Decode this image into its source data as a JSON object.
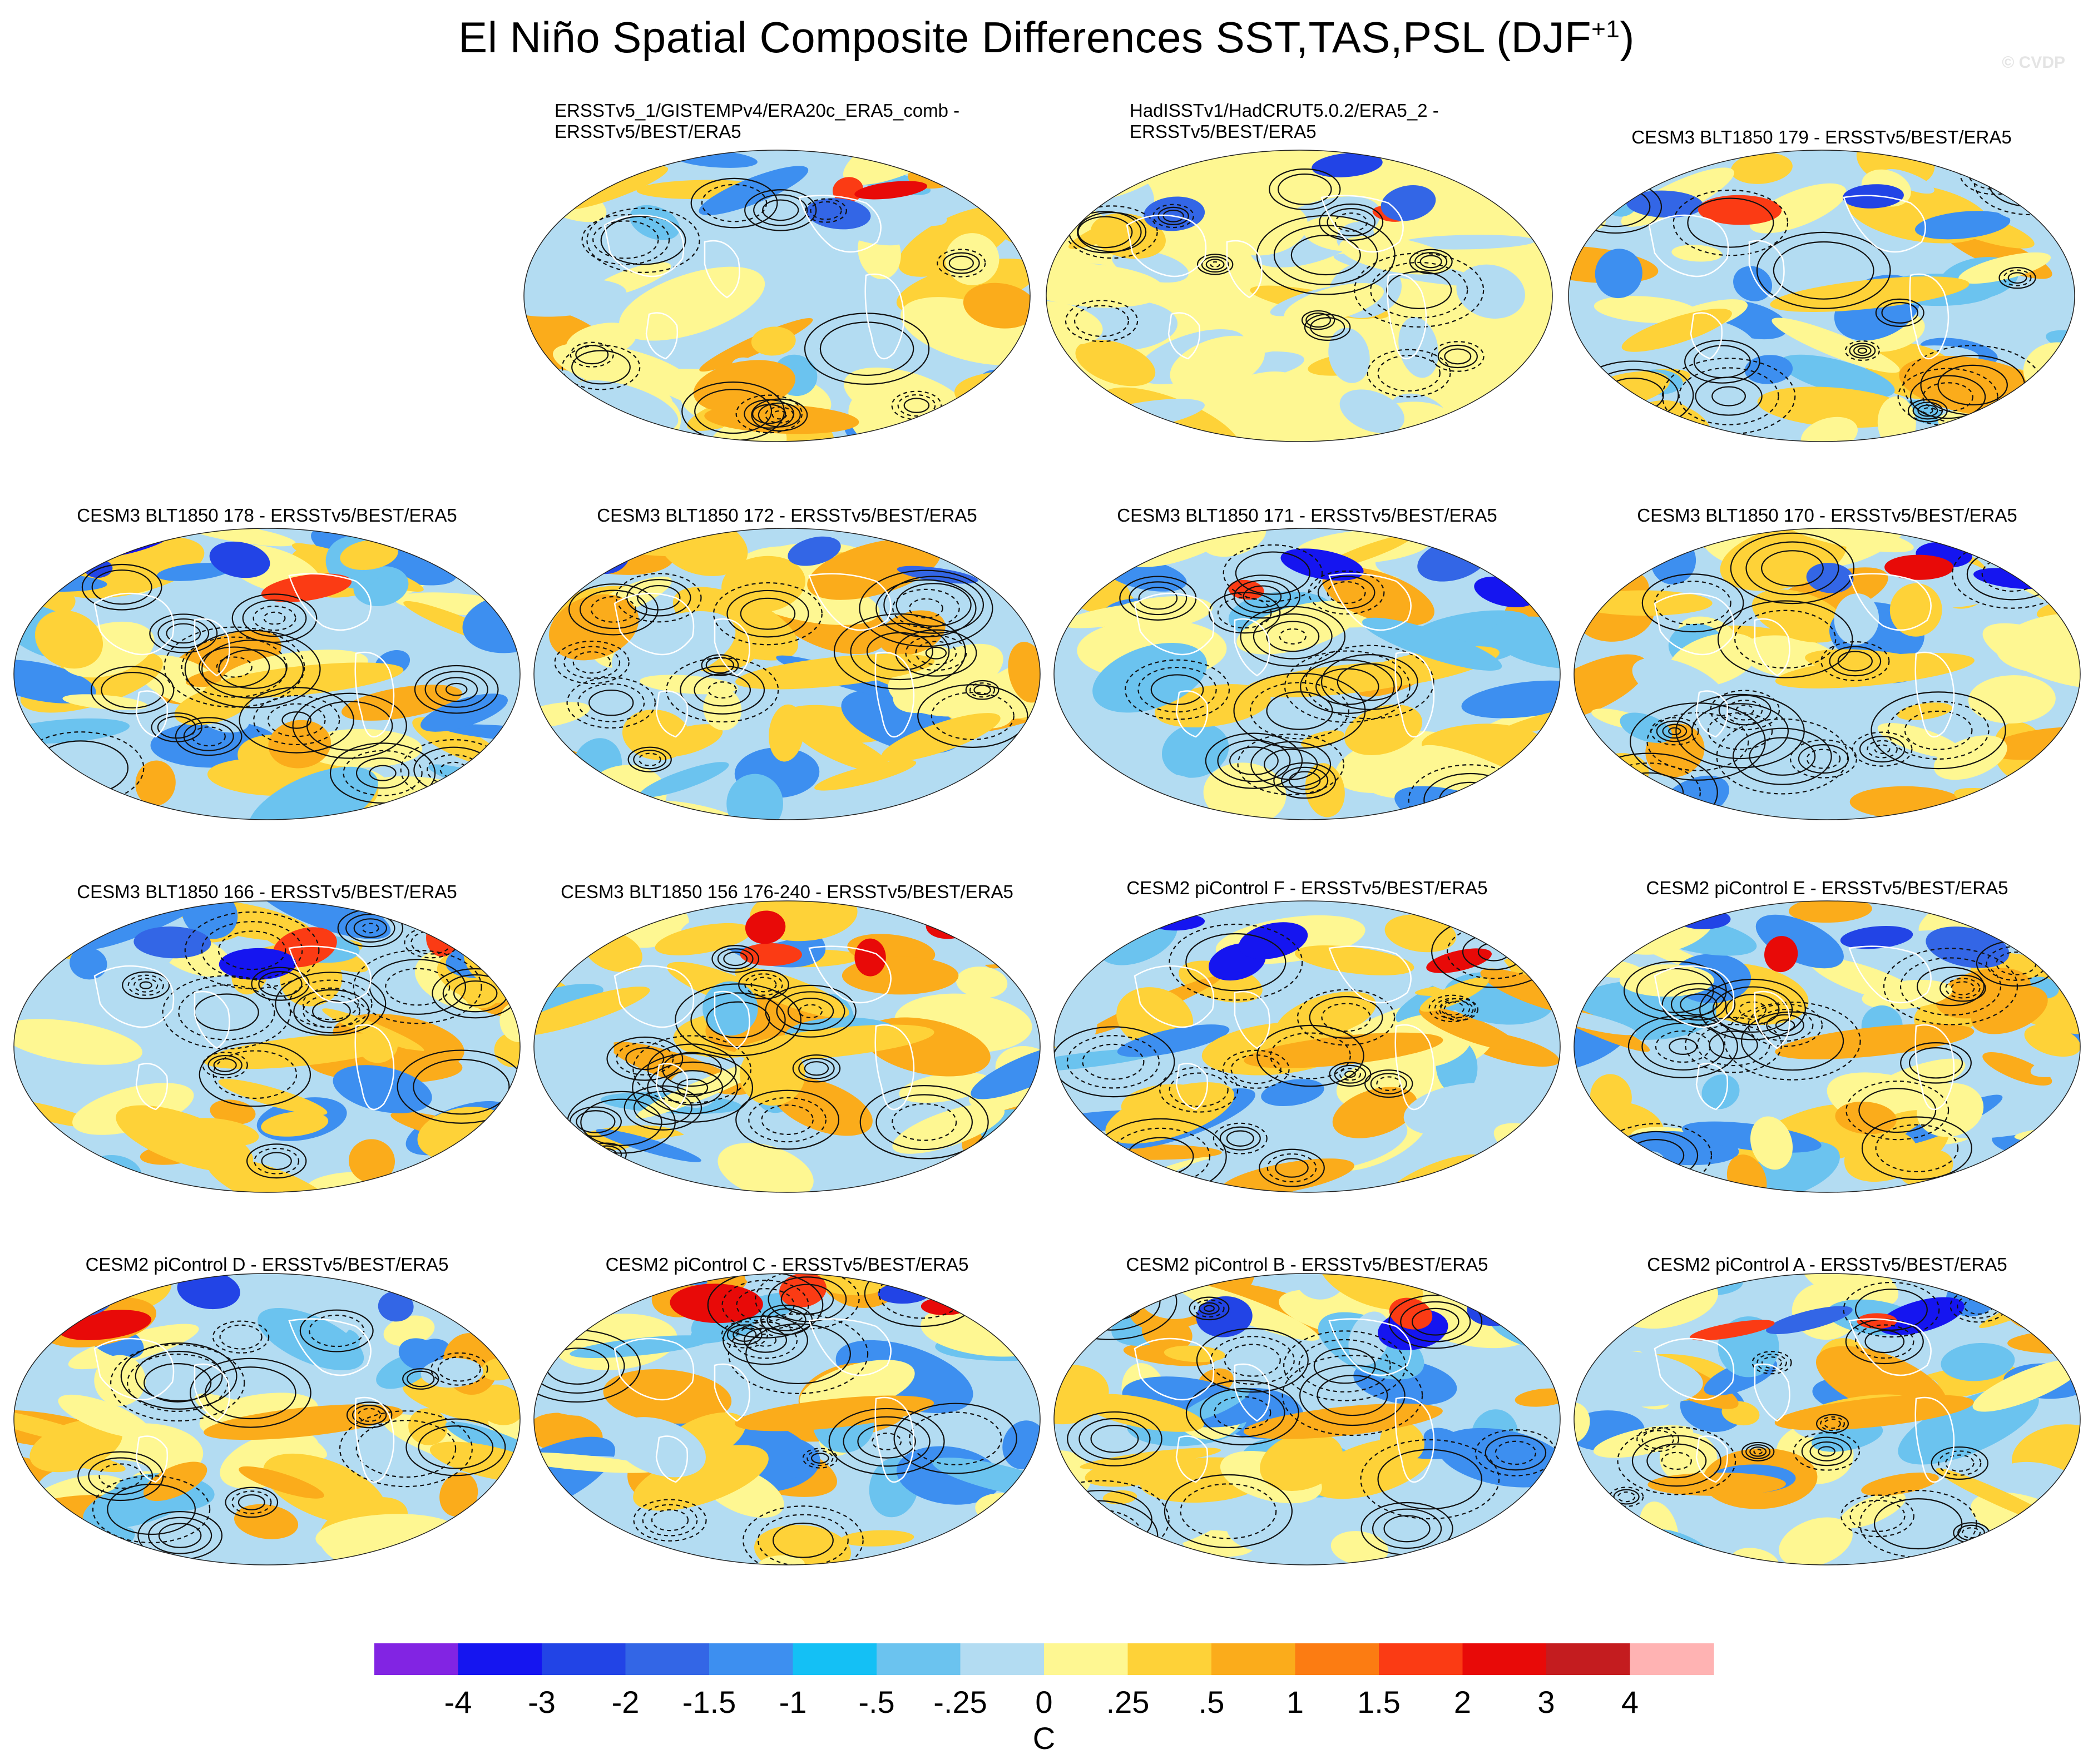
{
  "title": "El Niño Spatial Composite Differences SST,TAS,PSL (DJF",
  "title_superscript": "+1",
  "title_close": ")",
  "watermark": "© CVDP",
  "panels": [
    {
      "title": "ERSSTv5_1/GISTEMPv4/ERA20c_ERA5_comb -",
      "title2": "ERSSTv5/BEST/ERA5"
    },
    {
      "title": "HadISSTv1/HadCRUT5.0.2/ERA5_2 -",
      "title2": "ERSSTv5/BEST/ERA5"
    },
    {
      "title": "CESM3 BLT1850 179 - ERSSTv5/BEST/ERA5",
      "title2": ""
    },
    {
      "title": "CESM3 BLT1850 178 - ERSSTv5/BEST/ERA5",
      "title2": ""
    },
    {
      "title": "CESM3 BLT1850 172 - ERSSTv5/BEST/ERA5",
      "title2": ""
    },
    {
      "title": "CESM3 BLT1850 171 - ERSSTv5/BEST/ERA5",
      "title2": ""
    },
    {
      "title": "CESM3 BLT1850 170 - ERSSTv5/BEST/ERA5",
      "title2": ""
    },
    {
      "title": "CESM3 BLT1850 166 - ERSSTv5/BEST/ERA5",
      "title2": ""
    },
    {
      "title": "CESM3 BLT1850 156 176-240 - ERSSTv5/BEST/ERA5",
      "title2": ""
    },
    {
      "title": "CESM2 piControl F - ERSSTv5/BEST/ERA5",
      "title2": ""
    },
    {
      "title": "CESM2 piControl E - ERSSTv5/BEST/ERA5",
      "title2": ""
    },
    {
      "title": "CESM2 piControl D - ERSSTv5/BEST/ERA5",
      "title2": ""
    },
    {
      "title": "CESM2 piControl C - ERSSTv5/BEST/ERA5",
      "title2": ""
    },
    {
      "title": "CESM2 piControl B - ERSSTv5/BEST/ERA5",
      "title2": ""
    },
    {
      "title": "CESM2 piControl A - ERSSTv5/BEST/ERA5",
      "title2": ""
    }
  ],
  "colorbar": {
    "unit": "C",
    "labels": [
      "-4",
      "-3",
      "-2",
      "-1.5",
      "-1",
      "-.5",
      "-.25",
      "0",
      ".25",
      ".5",
      "1",
      "1.5",
      "2",
      "3",
      "4"
    ],
    "colors": [
      "#8224e3",
      "#1515f0",
      "#2244e6",
      "#3366e6",
      "#3d8ff0",
      "#14c0f5",
      "#6bc3ef",
      "#b3dcf2",
      "#fef792",
      "#fed238",
      "#fbac1b",
      "#fc7c12",
      "#fb3b14",
      "#e80a08",
      "#c41c1f",
      "#ffb3b3"
    ]
  }
}
